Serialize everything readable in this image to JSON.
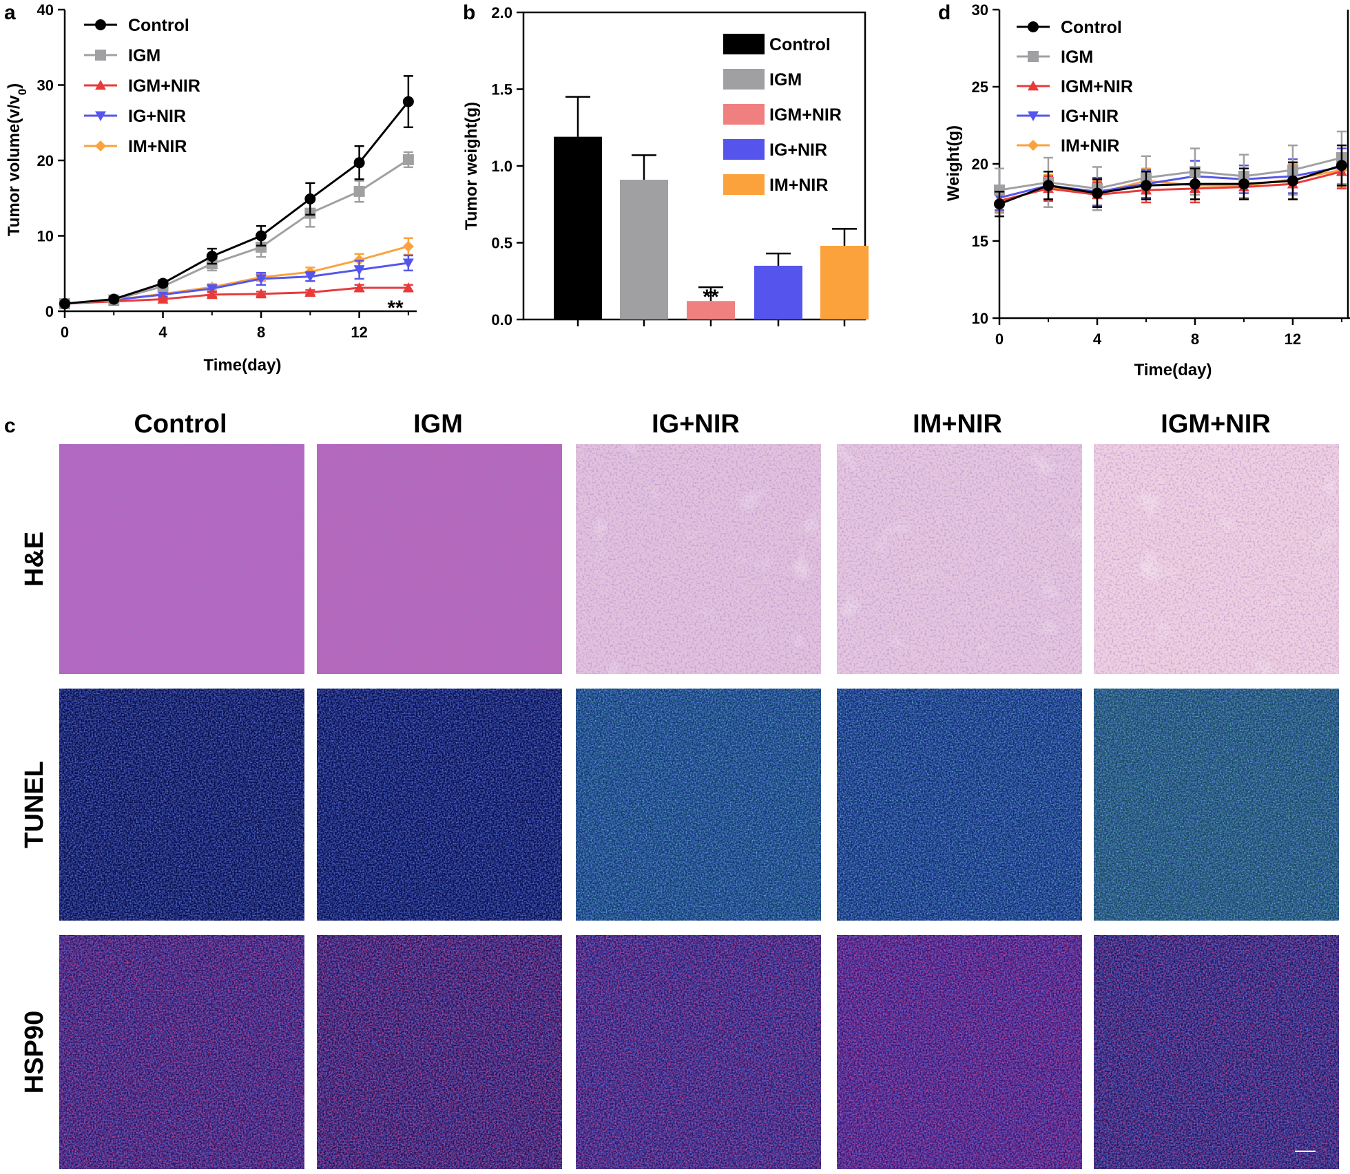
{
  "panels": {
    "a": "a",
    "b": "b",
    "c": "c",
    "d": "d"
  },
  "colors": {
    "Control": "#000000",
    "IGM": "#a0a0a2",
    "IGM+NIR": "#f08080",
    "IGM+NIR_line": "#e83a3a",
    "IG+NIR": "#5555ee",
    "IM+NIR": "#fba23c"
  },
  "chart_data": [
    {
      "id": "a",
      "type": "line",
      "title": "",
      "xlabel": "Time(day)",
      "ylabel": "Tumor volume(v/v",
      "ylabel_sub": "0",
      "ylabel_close": ")",
      "xlim": [
        0,
        14.2
      ],
      "ylim": [
        0,
        40
      ],
      "xticks": [
        0,
        4,
        8,
        12
      ],
      "yticks": [
        0,
        10,
        20,
        30,
        40
      ],
      "significance": "**",
      "x": [
        0,
        2,
        4,
        6,
        8,
        10,
        12,
        14
      ],
      "series": [
        {
          "name": "Control",
          "marker": "circle",
          "values": [
            1.0,
            1.6,
            3.7,
            7.3,
            10.0,
            14.9,
            19.7,
            27.8
          ],
          "errors": [
            0.2,
            0.3,
            0.4,
            1.0,
            1.3,
            2.1,
            2.2,
            3.4
          ]
        },
        {
          "name": "IGM",
          "marker": "square",
          "values": [
            1.0,
            1.5,
            3.3,
            6.3,
            8.5,
            13.0,
            15.9,
            20.1
          ],
          "errors": [
            0.2,
            0.3,
            0.4,
            0.9,
            1.3,
            1.8,
            1.4,
            1.0
          ]
        },
        {
          "name": "IGM+NIR",
          "marker": "triangle-up",
          "values": [
            1.0,
            1.3,
            1.6,
            2.2,
            2.3,
            2.5,
            3.1,
            3.1
          ],
          "errors": [
            0.1,
            0.2,
            0.2,
            0.3,
            0.3,
            0.3,
            0.4,
            0.4
          ]
        },
        {
          "name": "IG+NIR",
          "marker": "triangle-down",
          "values": [
            1.0,
            1.5,
            2.2,
            3.0,
            4.3,
            4.6,
            5.5,
            6.4
          ],
          "errors": [
            0.1,
            0.2,
            0.3,
            0.4,
            0.8,
            0.6,
            1.2,
            1.0
          ]
        },
        {
          "name": "IM+NIR",
          "marker": "diamond",
          "values": [
            1.0,
            1.5,
            2.3,
            3.2,
            4.5,
            5.2,
            6.8,
            8.6
          ],
          "errors": [
            0.1,
            0.2,
            0.3,
            0.4,
            0.5,
            0.6,
            0.8,
            1.1
          ]
        }
      ]
    },
    {
      "id": "b",
      "type": "bar",
      "title": "",
      "xlabel": "",
      "ylabel": "Tumor weight(g)",
      "ylim": [
        0,
        2.0
      ],
      "yticks": [
        0.0,
        0.5,
        1.0,
        1.5,
        2.0
      ],
      "categories": [
        "Control",
        "IGM",
        "IGM+NIR",
        "IG+NIR",
        "IM+NIR"
      ],
      "values": [
        1.19,
        0.91,
        0.12,
        0.35,
        0.48
      ],
      "errors": [
        0.26,
        0.16,
        0.09,
        0.08,
        0.11
      ],
      "significance": "**",
      "significance_category": "IGM+NIR"
    },
    {
      "id": "d",
      "type": "line",
      "title": "",
      "xlabel": "Time(day)",
      "ylabel": "Weight(g)",
      "xlim": [
        0,
        14.2
      ],
      "ylim": [
        10,
        30
      ],
      "xticks": [
        0,
        4,
        8,
        12
      ],
      "yticks": [
        10,
        15,
        20,
        25,
        30
      ],
      "x": [
        0,
        2,
        4,
        6,
        8,
        10,
        12,
        14
      ],
      "series": [
        {
          "name": "Control",
          "marker": "circle",
          "values": [
            17.4,
            18.6,
            18.1,
            18.6,
            18.7,
            18.7,
            18.9,
            19.9
          ],
          "errors": [
            0.8,
            0.9,
            0.9,
            0.9,
            1.0,
            1.0,
            1.2,
            1.3
          ]
        },
        {
          "name": "IGM",
          "marker": "square",
          "values": [
            18.3,
            18.8,
            18.4,
            19.1,
            19.5,
            19.2,
            19.6,
            20.4
          ],
          "errors": [
            1.4,
            1.6,
            1.4,
            1.4,
            1.5,
            1.4,
            1.6,
            1.7
          ]
        },
        {
          "name": "IGM+NIR",
          "marker": "triangle-up",
          "values": [
            17.6,
            18.4,
            18.0,
            18.3,
            18.4,
            18.5,
            18.7,
            19.5
          ],
          "errors": [
            0.7,
            0.8,
            0.8,
            0.8,
            0.9,
            0.8,
            1.0,
            1.1
          ]
        },
        {
          "name": "IG+NIR",
          "marker": "triangle-down",
          "values": [
            17.8,
            18.6,
            18.2,
            18.7,
            19.2,
            19.0,
            19.2,
            19.8
          ],
          "errors": [
            0.8,
            0.9,
            0.9,
            0.9,
            1.0,
            0.9,
            1.1,
            1.2
          ]
        },
        {
          "name": "IM+NIR",
          "marker": "diamond",
          "values": [
            17.5,
            18.5,
            18.1,
            18.9,
            18.6,
            18.6,
            19.0,
            19.6
          ],
          "errors": [
            0.7,
            0.8,
            0.8,
            0.8,
            0.9,
            0.8,
            1.0,
            1.1
          ]
        }
      ]
    }
  ],
  "micrographs": {
    "columns": [
      "Control",
      "IGM",
      "IG+NIR",
      "IM+NIR",
      "IGM+NIR"
    ],
    "rows": [
      "H&E",
      "TUNEL",
      "HSP90"
    ]
  }
}
